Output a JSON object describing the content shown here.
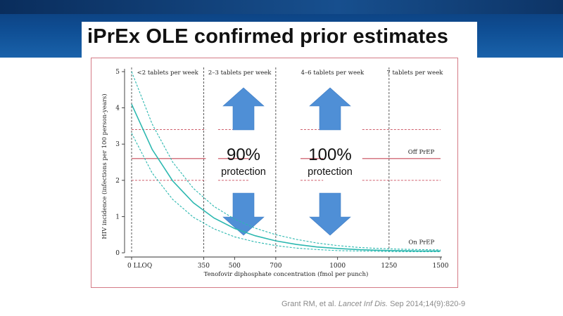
{
  "slide": {
    "title": "iPrEx OLE confirmed prior estimates",
    "citation_authors": "Grant RM, et al. ",
    "citation_journal": "Lancet Inf Dis.",
    "citation_rest": " Sep 2014;14(9):820-9"
  },
  "colors": {
    "curve": "#2cb8b0",
    "reference_line": "#c94a5a",
    "arrow": "#4f8fd6",
    "divider": "#333333",
    "banner": "#0f4f95"
  },
  "chart_data": {
    "type": "line",
    "title": "",
    "xlabel": "Tenofovir diphosphate concentration (fmol per punch)",
    "ylabel": "HIV incidence (infections per 100 person-years)",
    "xlim": [
      0,
      1500
    ],
    "ylim": [
      0,
      5
    ],
    "x_ticks": [
      {
        "value": 0,
        "label": "0 LLOQ"
      },
      {
        "value": 350,
        "label": "350"
      },
      {
        "value": 500,
        "label": "500"
      },
      {
        "value": 700,
        "label": "700"
      },
      {
        "value": 1000,
        "label": "1000"
      },
      {
        "value": 1250,
        "label": "1250"
      },
      {
        "value": 1500,
        "label": "1500"
      }
    ],
    "y_ticks": [
      0,
      1,
      2,
      3,
      4,
      5
    ],
    "grid": false,
    "dividers": [
      350,
      700,
      1250
    ],
    "regions": [
      {
        "label": "<2 tablets per week",
        "x_from": 0,
        "x_to": 350
      },
      {
        "label": "2–3 tablets per week",
        "x_from": 350,
        "x_to": 700
      },
      {
        "label": "4–6 tablets per week",
        "x_from": 700,
        "x_to": 1250
      },
      {
        "label": "7 tablets per week",
        "x_from": 1250,
        "x_to": 1500
      }
    ],
    "reference_lines": [
      {
        "name": "Off PrEP",
        "y": 2.6,
        "ci": [
          2.0,
          3.4
        ]
      },
      {
        "name": "On PrEP",
        "y": 0.05
      }
    ],
    "series": [
      {
        "name": "estimate",
        "x": [
          0,
          100,
          200,
          300,
          400,
          500,
          600,
          700,
          800,
          900,
          1000,
          1100,
          1200,
          1300,
          1400,
          1500
        ],
        "y": [
          4.1,
          2.85,
          1.98,
          1.38,
          0.96,
          0.67,
          0.47,
          0.33,
          0.23,
          0.16,
          0.12,
          0.09,
          0.07,
          0.06,
          0.05,
          0.05
        ]
      },
      {
        "name": "upper 95% CI",
        "x": [
          0,
          100,
          200,
          300,
          400,
          500,
          600,
          700,
          800,
          900,
          1000,
          1100,
          1200,
          1300,
          1400,
          1500
        ],
        "y": [
          5.0,
          3.55,
          2.5,
          1.78,
          1.28,
          0.93,
          0.68,
          0.5,
          0.37,
          0.27,
          0.2,
          0.15,
          0.12,
          0.1,
          0.09,
          0.08
        ]
      },
      {
        "name": "lower 95% CI",
        "x": [
          0,
          100,
          200,
          300,
          400,
          500,
          600,
          700,
          800,
          900,
          1000,
          1100,
          1200,
          1300,
          1400,
          1500
        ],
        "y": [
          3.3,
          2.2,
          1.47,
          0.98,
          0.66,
          0.44,
          0.3,
          0.2,
          0.13,
          0.09,
          0.06,
          0.05,
          0.04,
          0.03,
          0.03,
          0.03
        ]
      }
    ],
    "annotations": [
      {
        "percent": "90%",
        "text": "protection",
        "region": "2–3 tablets per week"
      },
      {
        "percent": "100%",
        "text": "protection",
        "region": "4–6 tablets per week"
      }
    ]
  }
}
